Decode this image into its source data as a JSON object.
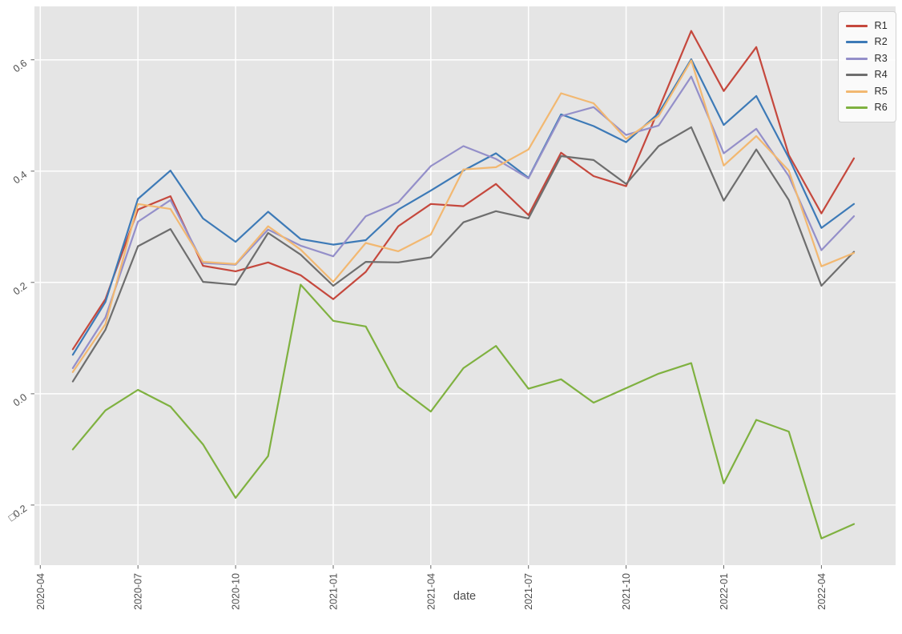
{
  "chart_data": {
    "type": "line",
    "title": "",
    "xlabel": "date",
    "ylabel": "",
    "grid": "on",
    "legend_position": "upper right",
    "plot_background": "#e5e5e5",
    "grid_color": "#ffffff",
    "tick_label_color": "#4d4d4d",
    "x": [
      "2020-05",
      "2020-06",
      "2020-07",
      "2020-08",
      "2020-09",
      "2020-10",
      "2020-11",
      "2020-12",
      "2021-01",
      "2021-02",
      "2021-03",
      "2021-04",
      "2021-05",
      "2021-06",
      "2021-07",
      "2021-08",
      "2021-09",
      "2021-10",
      "2021-11",
      "2021-12",
      "2022-01",
      "2022-02",
      "2022-03",
      "2022-04",
      "2022-05"
    ],
    "series": [
      {
        "name": "R1",
        "color": "#c5483d",
        "values": [
          0.08,
          0.17,
          0.331,
          0.355,
          0.23,
          0.22,
          0.236,
          0.213,
          0.17,
          0.219,
          0.301,
          0.341,
          0.337,
          0.377,
          0.321,
          0.433,
          0.391,
          0.373,
          0.511,
          0.652,
          0.544,
          0.623,
          0.429,
          0.324,
          0.423
        ]
      },
      {
        "name": "R2",
        "color": "#3d7ab7",
        "values": [
          0.07,
          0.165,
          0.35,
          0.401,
          0.315,
          0.273,
          0.327,
          0.278,
          0.268,
          0.276,
          0.331,
          0.365,
          0.401,
          0.432,
          0.388,
          0.502,
          0.481,
          0.452,
          0.504,
          0.601,
          0.483,
          0.535,
          0.424,
          0.298,
          0.341
        ]
      },
      {
        "name": "R3",
        "color": "#948fc9",
        "values": [
          0.046,
          0.137,
          0.309,
          0.348,
          0.235,
          0.232,
          0.295,
          0.266,
          0.247,
          0.319,
          0.344,
          0.409,
          0.445,
          0.422,
          0.387,
          0.499,
          0.515,
          0.465,
          0.482,
          0.57,
          0.432,
          0.476,
          0.391,
          0.258,
          0.319
        ]
      },
      {
        "name": "R4",
        "color": "#6e6e6e",
        "values": [
          0.022,
          0.115,
          0.265,
          0.296,
          0.201,
          0.196,
          0.289,
          0.25,
          0.194,
          0.237,
          0.236,
          0.245,
          0.308,
          0.328,
          0.315,
          0.427,
          0.42,
          0.377,
          0.445,
          0.479,
          0.347,
          0.439,
          0.348,
          0.194,
          0.255
        ]
      },
      {
        "name": "R5",
        "color": "#f2b871",
        "values": [
          0.039,
          0.125,
          0.341,
          0.332,
          0.237,
          0.233,
          0.301,
          0.259,
          0.201,
          0.271,
          0.256,
          0.286,
          0.403,
          0.407,
          0.439,
          0.54,
          0.522,
          0.458,
          0.499,
          0.599,
          0.41,
          0.463,
          0.401,
          0.229,
          0.253
        ]
      },
      {
        "name": "R6",
        "color": "#7fb140",
        "values": [
          -0.1,
          -0.03,
          0.007,
          -0.023,
          -0.091,
          -0.187,
          -0.112,
          0.196,
          0.131,
          0.121,
          0.012,
          -0.032,
          0.046,
          0.086,
          0.009,
          0.026,
          -0.016,
          0.01,
          0.036,
          0.055,
          -0.161,
          -0.047,
          -0.068,
          -0.26,
          -0.234
        ]
      }
    ],
    "x_tick_labels": [
      "2020-04",
      "2020-07",
      "2020-10",
      "2021-01",
      "2021-04",
      "2021-07",
      "2021-10",
      "2022-01",
      "2022-04"
    ],
    "y_tick_labels": [
      "0.6",
      "0.4",
      "0.2",
      "0.0",
      "□0.2"
    ],
    "y_tick_values": [
      0.6,
      0.4,
      0.2,
      0.0,
      -0.2
    ],
    "ylim": [
      -0.308,
      0.696
    ],
    "xlim_months": [
      -0.18,
      26.28
    ]
  }
}
